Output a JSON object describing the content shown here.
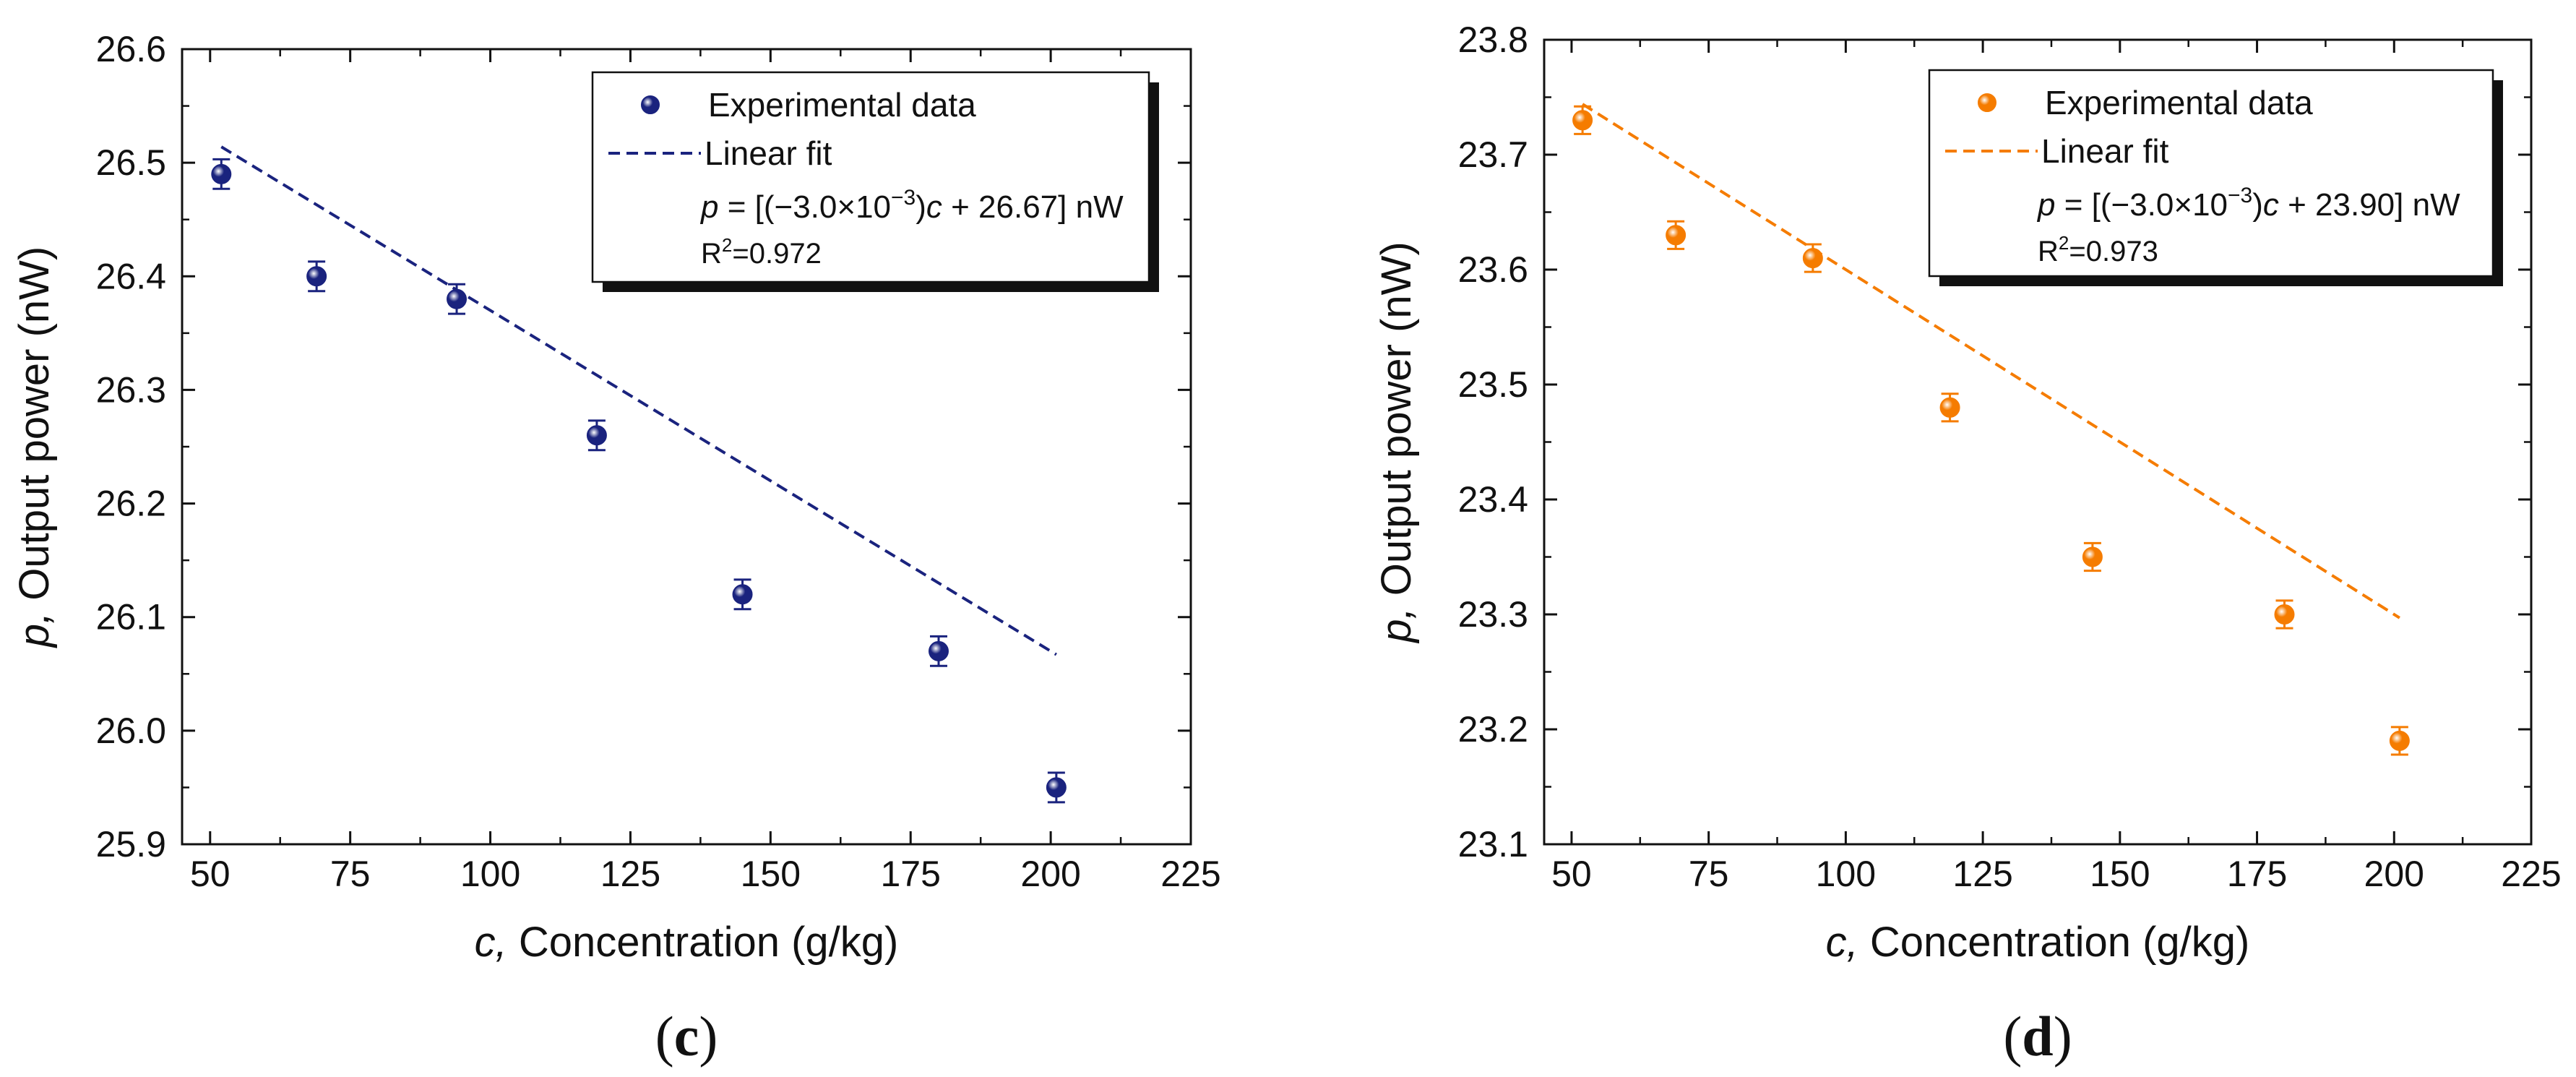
{
  "chart_data": [
    {
      "type": "scatter",
      "panel_label_parts": [
        "(",
        "c",
        ")"
      ],
      "xlabel_parts": [
        "c,",
        " Concentration (g/kg)"
      ],
      "ylabel_parts": [
        "p,",
        " Output power (nW)"
      ],
      "xlim": [
        45,
        225
      ],
      "ylim": [
        25.9,
        26.6
      ],
      "xticks": [
        50,
        75,
        100,
        125,
        150,
        175,
        200,
        225
      ],
      "yticks": [
        "25.9",
        "26.0",
        "26.1",
        "26.2",
        "26.3",
        "26.4",
        "26.5",
        "26.6"
      ],
      "color": "#1a237e",
      "series": [
        {
          "name": "Experimental data",
          "kind": "points_with_error",
          "x": [
            52,
            69,
            94,
            119,
            145,
            180,
            201
          ],
          "y": [
            26.49,
            26.4,
            26.38,
            26.26,
            26.12,
            26.07,
            25.95
          ],
          "error": [
            0.013,
            0.013,
            0.013,
            0.013,
            0.013,
            0.013,
            0.013
          ]
        },
        {
          "name": "Linear fit",
          "kind": "dashed_line",
          "slope": -0.003,
          "intercept": 26.67,
          "x_range": [
            52,
            201
          ]
        }
      ],
      "legend": {
        "position": "top-right",
        "entries": [
          "Experimental data",
          "Linear fit"
        ],
        "equation": {
          "var": "p",
          "prefix": " = [(−3.0×10",
          "exponent": "−3",
          "mid": ")",
          "cvar": "c",
          "suffix": " + 26.67] nW"
        },
        "r2": {
          "base": "R",
          "exp": "2",
          "value": "=0.972"
        }
      }
    },
    {
      "type": "scatter",
      "panel_label_parts": [
        "(",
        "d",
        ")"
      ],
      "xlabel_parts": [
        "c,",
        " Concentration (g/kg)"
      ],
      "ylabel_parts": [
        "p,",
        " Output power (nW)"
      ],
      "xlim": [
        45,
        225
      ],
      "ylim": [
        23.1,
        23.8
      ],
      "xticks": [
        50,
        75,
        100,
        125,
        150,
        175,
        200,
        225
      ],
      "yticks": [
        "23.1",
        "23.2",
        "23.3",
        "23.4",
        "23.5",
        "23.6",
        "23.7",
        "23.8"
      ],
      "color": "#f57c00",
      "series": [
        {
          "name": "Experimental data",
          "kind": "points_with_error",
          "x": [
            52,
            69,
            94,
            119,
            145,
            180,
            201
          ],
          "y": [
            23.73,
            23.63,
            23.61,
            23.48,
            23.35,
            23.3,
            23.19
          ],
          "error": [
            0.012,
            0.012,
            0.012,
            0.012,
            0.012,
            0.012,
            0.012
          ]
        },
        {
          "name": "Linear fit",
          "kind": "dashed_line",
          "slope": -0.003,
          "intercept": 23.9,
          "x_range": [
            52,
            201
          ]
        }
      ],
      "legend": {
        "position": "top-right",
        "entries": [
          "Experimental data",
          "Linear fit"
        ],
        "equation": {
          "var": "p",
          "prefix": " = [(−3.0×10",
          "exponent": "−3",
          "mid": ")",
          "cvar": "c",
          "suffix": " + 23.90] nW"
        },
        "r2": {
          "base": "R",
          "exp": "2",
          "value": "=0.973"
        }
      }
    }
  ]
}
